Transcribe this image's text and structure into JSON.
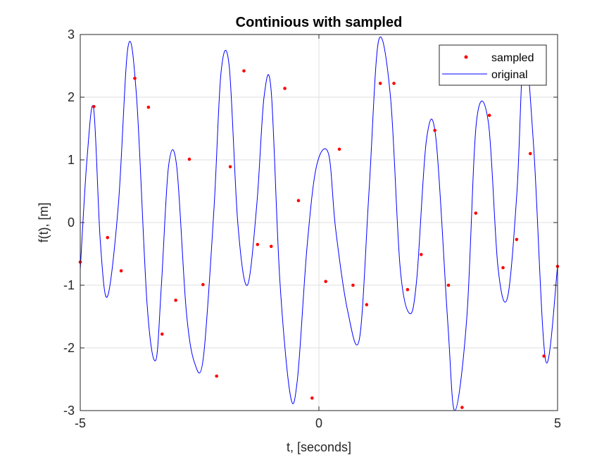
{
  "chart_data": {
    "type": "line",
    "title": "Continious with sampled",
    "xlabel": "t, [seconds]",
    "ylabel": "f(t), [m]",
    "xlim": [
      -5,
      5
    ],
    "ylim": [
      -3,
      3
    ],
    "xticks": [
      -5,
      0,
      5
    ],
    "yticks": [
      -3,
      -2,
      -1,
      0,
      1,
      2,
      3
    ],
    "xtick_labels": [
      "-5",
      "0",
      "5"
    ],
    "ytick_labels": [
      "-3",
      "-2",
      "-1",
      "0",
      "1",
      "2",
      "3"
    ],
    "grid": true,
    "legend_position": "top-right",
    "series": [
      {
        "name": "sampled",
        "style": "markers",
        "color": "#ff0000",
        "x": [
          -5.0,
          -4.7143,
          -4.4286,
          -4.1429,
          -3.8571,
          -3.5714,
          -3.2857,
          -3.0,
          -2.7143,
          -2.4286,
          -2.1429,
          -1.8571,
          -1.5714,
          -1.2857,
          -1.0,
          -0.7143,
          -0.4286,
          -0.1429,
          0.1429,
          0.4286,
          0.7143,
          1.0,
          1.2857,
          1.5714,
          1.8571,
          2.1429,
          2.4286,
          2.7143,
          3.0,
          3.2857,
          3.5714,
          3.8571,
          4.1429,
          4.4286,
          4.7143,
          5.0
        ],
        "y": [
          -0.63,
          1.85,
          -0.24,
          -0.77,
          2.3,
          1.84,
          -1.78,
          -1.24,
          1.01,
          -0.99,
          -2.45,
          0.89,
          2.42,
          -0.35,
          -0.38,
          2.14,
          0.35,
          -2.8,
          -0.94,
          1.17,
          -1.0,
          -1.31,
          2.22,
          2.22,
          -1.07,
          -0.51,
          1.47,
          -1.0,
          -2.95,
          0.15,
          1.71,
          -0.72,
          -0.27,
          1.1,
          -2.13,
          -0.7
        ]
      },
      {
        "name": "original",
        "style": "line",
        "color": "#0000ff",
        "x": [
          -5.0,
          -4.86,
          -4.72,
          -4.58,
          -4.43,
          -4.2,
          -4.0,
          -3.82,
          -3.6,
          -3.42,
          -3.3,
          -3.15,
          -2.98,
          -2.78,
          -2.6,
          -2.42,
          -2.2,
          -2.05,
          -1.88,
          -1.7,
          -1.5,
          -1.3,
          -1.15,
          -1.0,
          -0.82,
          -0.6,
          -0.45,
          -0.25,
          -0.05,
          0.2,
          0.35,
          0.6,
          0.85,
          1.05,
          1.25,
          1.5,
          1.7,
          1.9,
          2.05,
          2.25,
          2.45,
          2.7,
          2.85,
          3.1,
          3.3,
          3.55,
          3.75,
          3.95,
          4.15,
          4.3,
          4.5,
          4.75,
          5.0
        ],
        "y": [
          -0.75,
          1.0,
          1.82,
          -0.3,
          -1.18,
          0.3,
          2.8,
          2.0,
          -1.3,
          -2.2,
          -1.0,
          0.9,
          0.9,
          -1.4,
          -2.25,
          -2.15,
          0.2,
          2.4,
          2.5,
          0.0,
          -1.0,
          0.3,
          2.0,
          2.1,
          -0.9,
          -2.75,
          -2.5,
          -0.4,
          0.9,
          1.1,
          -0.1,
          -1.4,
          -1.85,
          0.5,
          2.9,
          2.0,
          -0.7,
          -1.45,
          -0.9,
          1.3,
          1.35,
          -1.6,
          -3.0,
          -1.5,
          1.6,
          1.6,
          -0.7,
          -1.2,
          0.5,
          2.8,
          1.2,
          -2.2,
          -0.7
        ]
      }
    ]
  }
}
